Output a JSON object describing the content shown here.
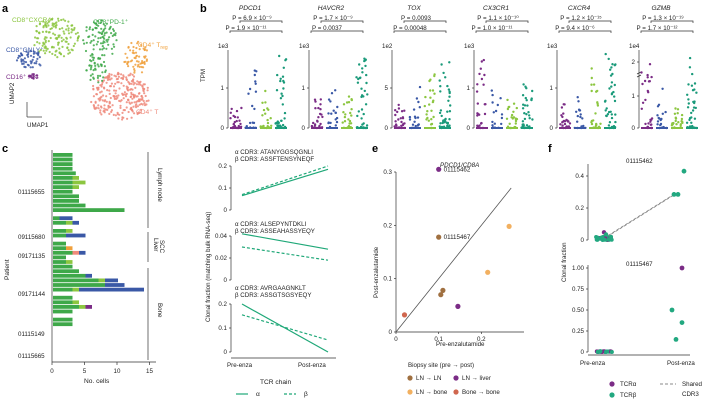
{
  "colors": {
    "green": "#3ea849",
    "lightgreen": "#8cc640",
    "teal": "#1a9a7a",
    "blue": "#3a58a6",
    "purple": "#7b2c86",
    "orange": "#f0a03c",
    "salmon": "#ef8a7b",
    "brown": "#a0522d",
    "grey": "#555555",
    "tcr_alpha": "#7b2c86",
    "tcr_beta": "#22a880"
  },
  "panels": {
    "a": {
      "label": "a",
      "axis_x": "UMAP1",
      "axis_y": "UMAP2",
      "clusters": {
        "cd8_cxcr4": "CD8⁺CXCR4⁺",
        "cd8_pd1": "CD8⁺PD-1⁺",
        "cd8_gnly": "CD8⁺GNLY⁺",
        "cd4_treg": "CD4⁺ T",
        "cd4_treg_sub": "reg",
        "cd16_nk": "CD16⁺ NK",
        "cd4_t": "CD4⁺ T"
      }
    },
    "b": {
      "label": "b",
      "ylabel": "TPM",
      "genes": [
        {
          "name": "PDCD1",
          "p_top": "P = 6.9 × 10⁻⁹",
          "p_bottom": "P = 1.9 × 10⁻¹¹",
          "scale": "1e3",
          "ticks": [
            "1",
            "0"
          ]
        },
        {
          "name": "HAVCR2",
          "p_top": "P = 1.7 × 10⁻⁹",
          "p_bottom": "P = 0.0037",
          "scale": "1e3",
          "ticks": [
            "1",
            "0"
          ]
        },
        {
          "name": "TOX",
          "p_top": "P = 0.0093",
          "p_bottom": "P = 0.00048",
          "scale": "1e2",
          "ticks": [
            "5",
            "0"
          ]
        },
        {
          "name": "CX3CR1",
          "p_top": "P = 1.1 × 10⁻¹⁰",
          "p_bottom": "P = 1.0 × 10⁻¹¹",
          "scale": "1e3",
          "ticks": [
            "1",
            "0"
          ]
        },
        {
          "name": "CXCR4",
          "p_top": "P = 1.2 × 10⁻¹⁵",
          "p_bottom": "P = 9.4 × 10⁻⁶",
          "scale": "1e3",
          "ticks": [
            "1",
            "0"
          ]
        },
        {
          "name": "GZMB",
          "p_top": "P = 1.3 × 10⁻¹⁹",
          "p_bottom": "P = 1.7 × 10⁻¹²",
          "scale": "1e4",
          "ticks": [
            "2",
            "1",
            "0"
          ]
        }
      ]
    },
    "c": {
      "label": "c",
      "ylabel": "Patient",
      "xlabel": "No. cells",
      "xticks": [
        "0",
        "5",
        "10",
        "15"
      ],
      "patients": [
        "01115655",
        "09115680",
        "09171135",
        "09171144",
        "01115149",
        "01115665"
      ],
      "sites": [
        "Lymph node",
        "Liver",
        "SCC",
        "Bone"
      ]
    },
    "d": {
      "label": "d",
      "ylabel": "Clonal fraction (matching bulk RNA-seq)",
      "xticks": [
        "Pre-enza",
        "Post-enza"
      ],
      "clones": [
        {
          "alpha": "α CDR3: ATANYGGSQGNLI",
          "beta": "β CDR3: ASSFTENSYNEQF",
          "yticks": [
            "0.2",
            "0.1",
            "0"
          ]
        },
        {
          "alpha": "α CDR3: ALSEPYNTDKLI",
          "beta": "β CDR3: ASSEAHASSYEQY",
          "yticks": [
            "0.04",
            "0.02",
            "0"
          ]
        },
        {
          "alpha": "α CDR3: AVRGAAGNKLT",
          "beta": "β CDR3: ASSGTSGSYEQY",
          "yticks": [
            "0.2",
            "0.1",
            "0"
          ]
        }
      ],
      "legend_title": "TCR chain",
      "legend_alpha": "α",
      "legend_beta": "β"
    },
    "e": {
      "label": "e",
      "title": "PDCD1/CD8A",
      "xlabel": "Pre-enzalutamide",
      "ylabel": "Post-enzalutamide",
      "xticks": [
        "0",
        "0.1",
        "0.2"
      ],
      "yticks": [
        "0.3",
        "0.2",
        "0.1",
        "0"
      ],
      "lim": [
        0,
        0.3
      ],
      "annotations": [
        "01115462",
        "01115467"
      ],
      "legend_title": "Biopsy site (pre → post)",
      "legend": [
        "LN → LN",
        "LN → liver",
        "LN → bone",
        "Bone → bone"
      ],
      "points": [
        {
          "x": 0.1,
          "y": 0.305,
          "site": 1
        },
        {
          "x": 0.1,
          "y": 0.178,
          "site": 0
        },
        {
          "x": 0.265,
          "y": 0.198,
          "site": 2
        },
        {
          "x": 0.215,
          "y": 0.112,
          "site": 2
        },
        {
          "x": 0.11,
          "y": 0.078,
          "site": 0
        },
        {
          "x": 0.105,
          "y": 0.07,
          "site": 0
        },
        {
          "x": 0.145,
          "y": 0.048,
          "site": 1
        },
        {
          "x": 0.02,
          "y": 0.032,
          "site": 3
        }
      ]
    },
    "f": {
      "label": "f",
      "ylabel": "Clonal fraction",
      "xticks": [
        "Pre-enza",
        "Post-enza"
      ],
      "top_patient": "01115462",
      "bottom_patient": "01115467",
      "top_yticks": [
        "0.4",
        "0.2",
        "0"
      ],
      "bottom_yticks": [
        "1.00",
        "0.75",
        "0.50",
        "0.25",
        "0"
      ],
      "legend_alpha": "TCRα",
      "legend_beta": "TCRβ",
      "legend_shared": "Shared",
      "legend_shared2": "CDR3"
    }
  }
}
